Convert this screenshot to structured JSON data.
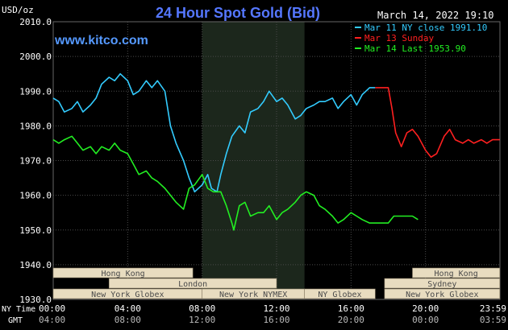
{
  "chart_data": {
    "type": "line",
    "title": "24 Hour Spot Gold (Bid)",
    "brand": "www.kitco.com",
    "timestamp": "March 14, 2022 19:10",
    "ylabel": "USD/oz",
    "ylim": [
      1930,
      2010
    ],
    "yticks": [
      "1930.0",
      "1940.0",
      "1950.0",
      "1960.0",
      "1970.0",
      "1980.0",
      "1990.0",
      "2000.0",
      "2010.0"
    ],
    "xlim": [
      0,
      24
    ],
    "grid": true,
    "legend_position": "top-right",
    "x_axis_rows": [
      {
        "label": "NY Time",
        "ticks": [
          "00:00",
          "04:00",
          "08:00",
          "12:00",
          "16:00",
          "20:00",
          "23:59"
        ]
      },
      {
        "label": "GMT",
        "ticks": [
          "04:00",
          "08:00",
          "12:00",
          "16:00",
          "20:00",
          "00:00",
          "03:59"
        ]
      }
    ],
    "shaded_region": [
      8,
      13.5
    ],
    "series": [
      {
        "name": "Mar 11 NY close 1991.10",
        "color": "#33ccff",
        "x": [
          0,
          0.3,
          0.6,
          1.0,
          1.3,
          1.6,
          2.0,
          2.3,
          2.6,
          3.0,
          3.3,
          3.6,
          4.0,
          4.3,
          4.6,
          5.0,
          5.3,
          5.6,
          6.0,
          6.3,
          6.6,
          7.0,
          7.3,
          7.6,
          8.0,
          8.3,
          8.5,
          8.8,
          9.0,
          9.3,
          9.6,
          10.0,
          10.3,
          10.6,
          11.0,
          11.3,
          11.6,
          12.0,
          12.3,
          12.6,
          13.0,
          13.3,
          13.6,
          14.0,
          14.3,
          14.6,
          15.0,
          15.3,
          15.6,
          16.0,
          16.3,
          16.6,
          17.0,
          17.3
        ],
        "y": [
          1988,
          1987,
          1984,
          1985,
          1987,
          1984,
          1986,
          1988,
          1992,
          1994,
          1993,
          1995,
          1993,
          1989,
          1990,
          1993,
          1991,
          1993,
          1990,
          1980,
          1975,
          1970,
          1965,
          1961,
          1963,
          1966,
          1962,
          1961,
          1966,
          1972,
          1977,
          1980,
          1978,
          1984,
          1985,
          1987,
          1990,
          1987,
          1988,
          1986,
          1982,
          1983,
          1985,
          1986,
          1987,
          1987,
          1988,
          1985,
          1987,
          1989,
          1986,
          1989,
          1991,
          1991
        ]
      },
      {
        "name": "Mar 13 Sunday",
        "color": "#ff2020",
        "x": [
          17.3,
          17.6,
          18.0,
          18.2,
          18.4,
          18.7,
          19.0,
          19.3,
          19.6,
          20.0,
          20.3,
          20.6,
          21.0,
          21.3,
          21.6,
          22.0,
          22.3,
          22.6,
          23.0,
          23.3,
          23.6,
          23.99
        ],
        "y": [
          1991,
          1991,
          1991,
          1985,
          1978,
          1974,
          1978,
          1979,
          1977,
          1973,
          1971,
          1972,
          1977,
          1979,
          1976,
          1975,
          1976,
          1975,
          1976,
          1975,
          1976,
          1976
        ]
      },
      {
        "name": "Mar 14 Last 1953.90",
        "color": "#22ee22",
        "x": [
          0,
          0.3,
          0.6,
          1.0,
          1.3,
          1.6,
          2.0,
          2.3,
          2.6,
          3.0,
          3.3,
          3.6,
          4.0,
          4.3,
          4.6,
          5.0,
          5.3,
          5.6,
          6.0,
          6.3,
          6.6,
          7.0,
          7.3,
          7.6,
          8.0,
          8.3,
          8.6,
          9.0,
          9.3,
          9.6,
          9.7,
          10.0,
          10.3,
          10.6,
          11.0,
          11.3,
          11.6,
          12.0,
          12.3,
          12.6,
          13.0,
          13.3,
          13.6,
          14.0,
          14.3,
          14.6,
          15.0,
          15.3,
          15.6,
          16.0,
          16.3,
          16.6,
          17.0,
          17.5,
          18.0,
          18.3,
          18.6,
          19.0,
          19.3,
          19.6
        ],
        "y": [
          1976,
          1975,
          1976,
          1977,
          1975,
          1973,
          1974,
          1972,
          1974,
          1973,
          1975,
          1973,
          1972,
          1969,
          1966,
          1967,
          1965,
          1964,
          1962,
          1960,
          1958,
          1956,
          1962,
          1963,
          1966,
          1962,
          1961,
          1961,
          1957,
          1952,
          1950,
          1957,
          1958,
          1954,
          1955,
          1955,
          1957,
          1953,
          1955,
          1956,
          1958,
          1960,
          1961,
          1960,
          1957,
          1956,
          1954,
          1952,
          1953,
          1955,
          1954,
          1953,
          1952,
          1952,
          1952,
          1954,
          1954,
          1954,
          1954,
          1953
        ]
      }
    ],
    "sessions": [
      {
        "label": "Hong Kong",
        "start": 0,
        "end": 7.5,
        "row": 0
      },
      {
        "label": "Hong Kong",
        "start": 19.3,
        "end": 23.99,
        "row": 0
      },
      {
        "label": "London",
        "start": 3,
        "end": 12,
        "row": 1
      },
      {
        "label": "Sydney",
        "start": 17.8,
        "end": 23.99,
        "row": 1
      },
      {
        "label": "New York Globex",
        "start": 0,
        "end": 8,
        "row": 2
      },
      {
        "label": "New York NYMEX",
        "start": 8,
        "end": 13.5,
        "row": 2
      },
      {
        "label": "NY Globex",
        "start": 13.5,
        "end": 17.3,
        "row": 2
      },
      {
        "label": "New York Globex",
        "start": 17.8,
        "end": 23.99,
        "row": 2
      }
    ]
  },
  "colors": {
    "background": "#000000",
    "plot_background": "#000000",
    "grid": "#4a4a4a",
    "title": "#5577ff",
    "brand": "#5599ff",
    "text": "#ffffff",
    "shaded_region": "#1c271c",
    "session_fill": "#e8dcc0",
    "session_text": "#4a4a4a",
    "session_border": "#8a7e66"
  }
}
